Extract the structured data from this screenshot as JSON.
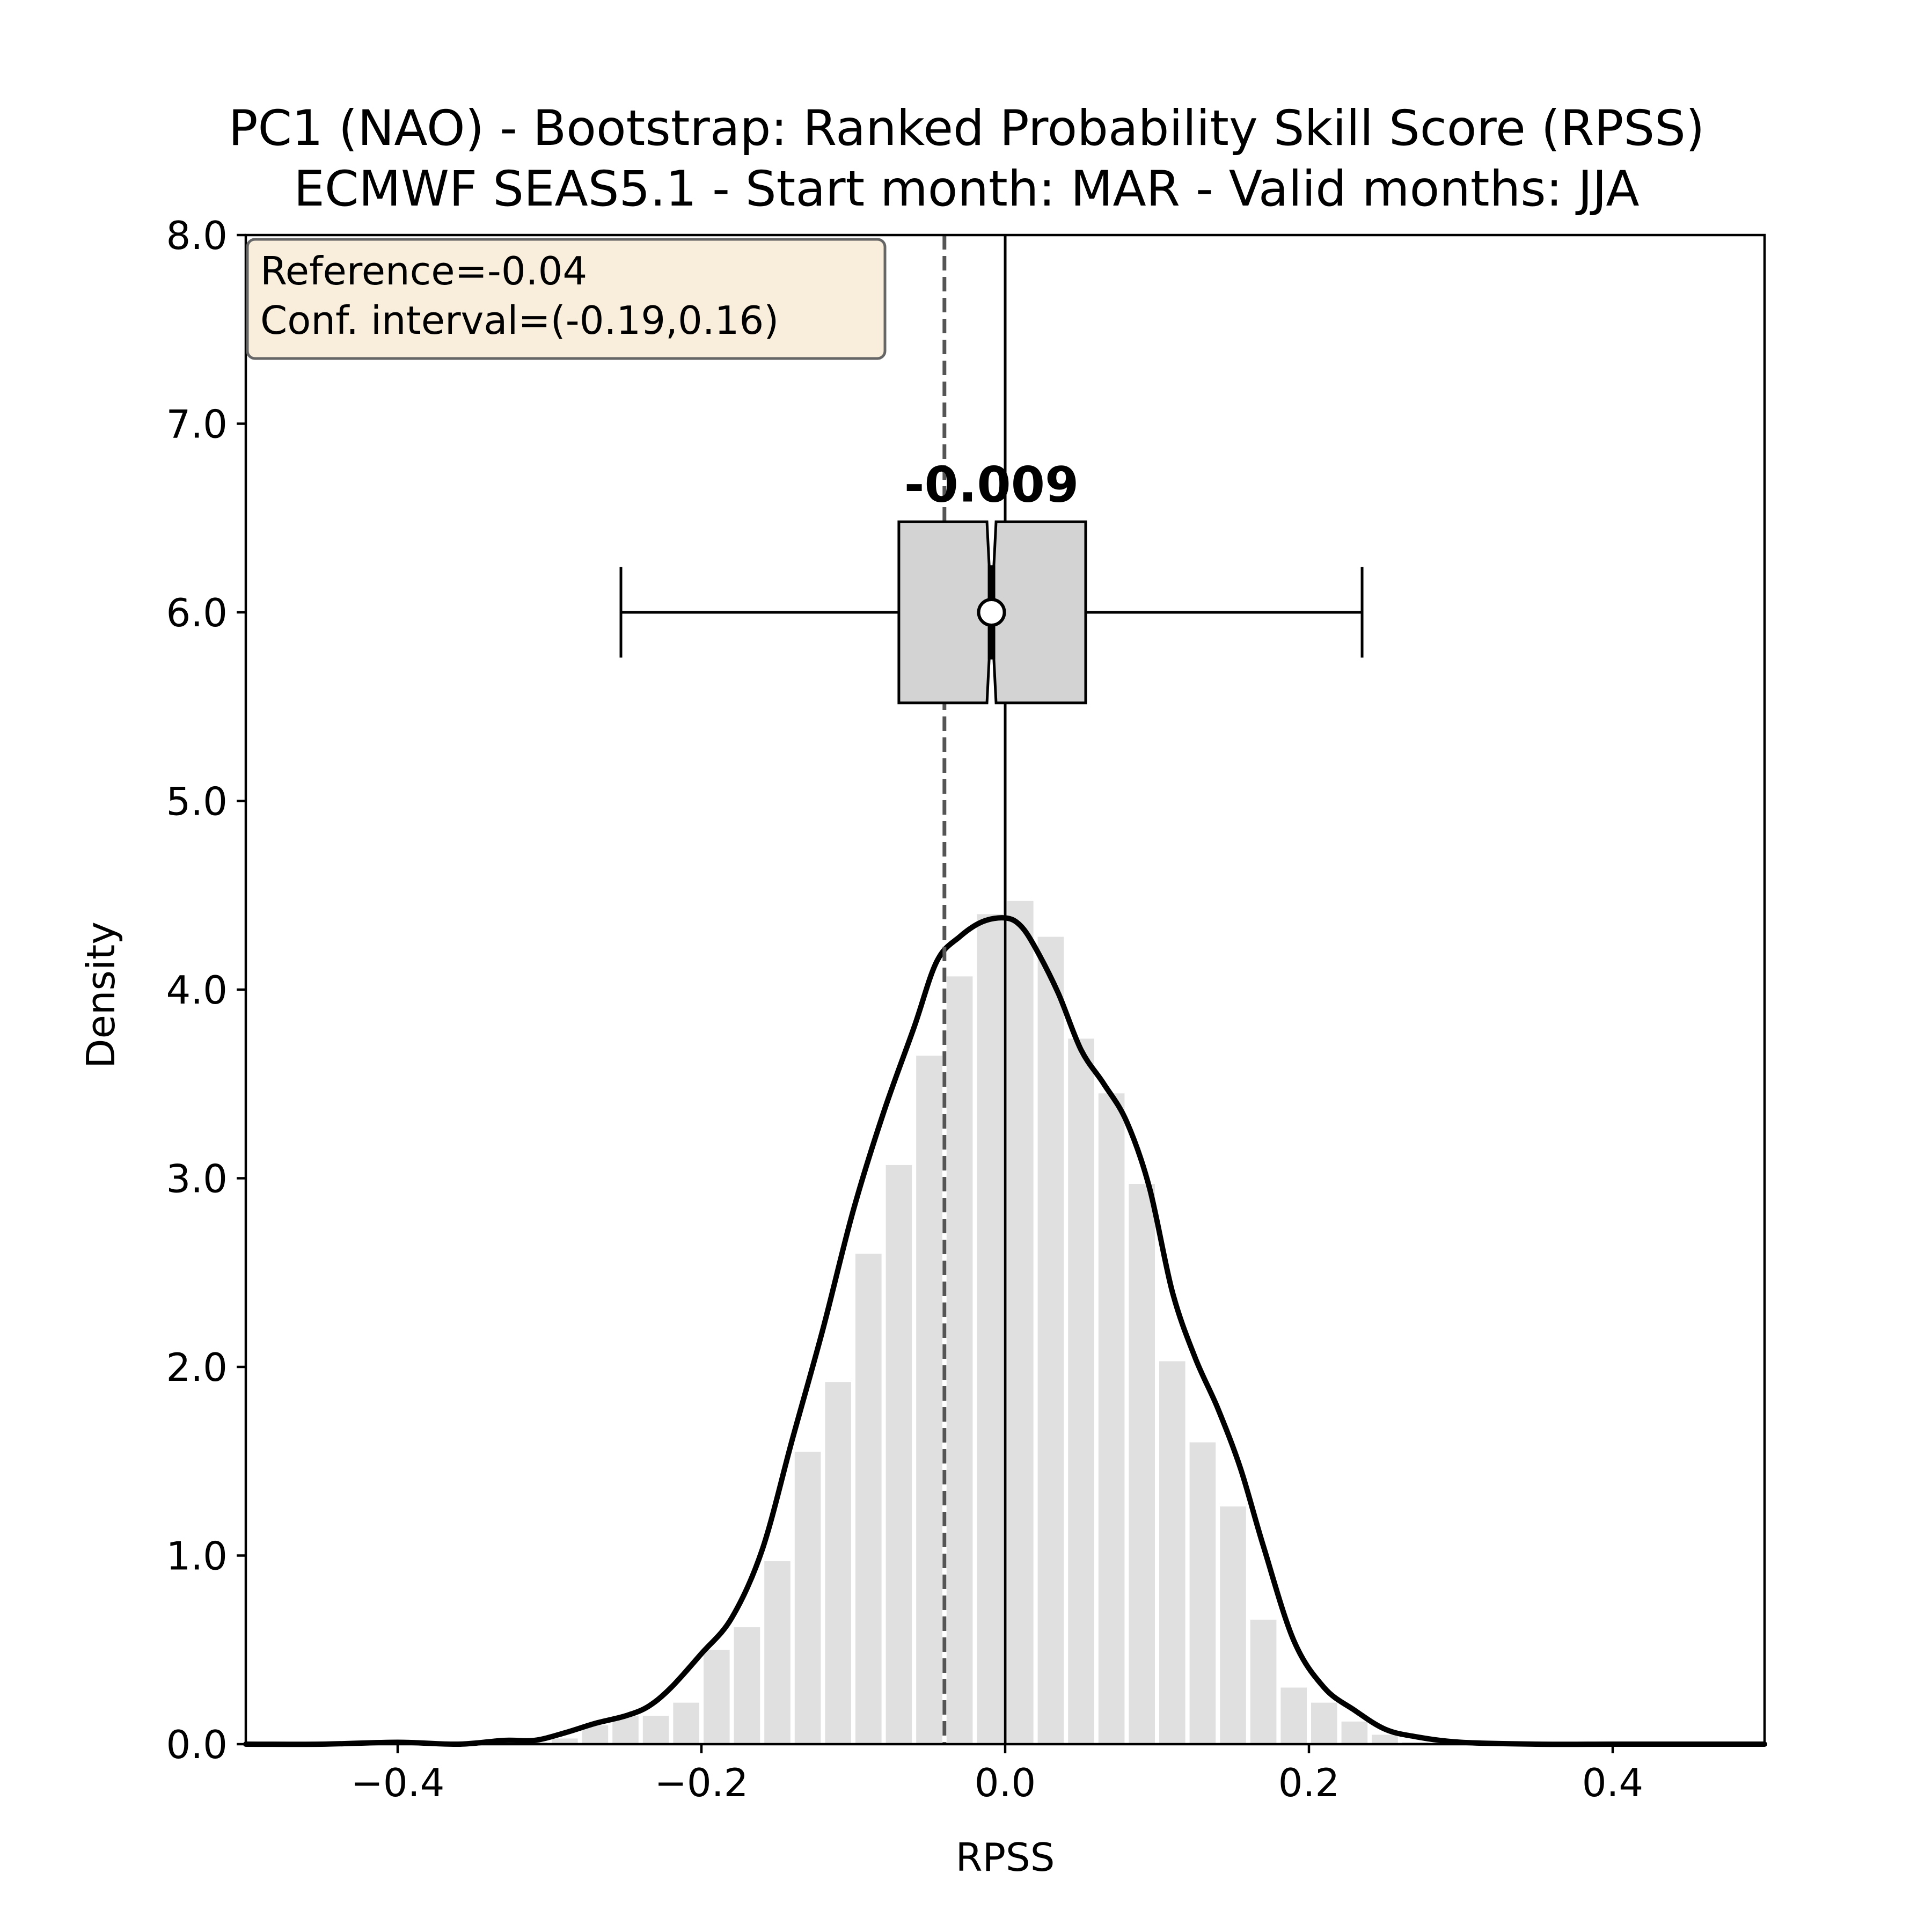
{
  "chart_data": {
    "type": "bar",
    "title": "PC1 (NAO) - Bootstrap: Ranked Probability Skill Score (RPSS)",
    "subtitle": "ECMWF SEAS5.1 - Start month: MAR - Valid months: JJA",
    "xlabel": "RPSS",
    "ylabel": "Density",
    "xlim": [
      -0.5,
      0.5
    ],
    "ylim": [
      0.0,
      8.0
    ],
    "xticks": [
      -0.4,
      -0.2,
      0.0,
      0.2,
      0.4
    ],
    "xtick_labels": [
      "−0.4",
      "−0.2",
      "0.0",
      "0.2",
      "0.4"
    ],
    "yticks": [
      0,
      1,
      2,
      3,
      4,
      5,
      6,
      7,
      8
    ],
    "ytick_labels": [
      "0.0",
      "1.0",
      "2.0",
      "3.0",
      "4.0",
      "5.0",
      "6.0",
      "7.0",
      "8.0"
    ],
    "grid": false,
    "info_box": {
      "line1": "Reference=-0.04",
      "line2": "Conf. interval=(-0.19,0.16)",
      "placement": "top-left"
    },
    "reference_line": -0.04,
    "zero_line": 0.0,
    "histogram": {
      "bin_edges": [
        -0.34,
        -0.32,
        -0.3,
        -0.28,
        -0.26,
        -0.24,
        -0.22,
        -0.2,
        -0.18,
        -0.16,
        -0.14,
        -0.12,
        -0.1,
        -0.08,
        -0.06,
        -0.04,
        -0.02,
        0.0,
        0.02,
        0.04,
        0.06,
        0.08,
        0.1,
        0.12,
        0.14,
        0.16,
        0.18,
        0.2,
        0.22,
        0.24,
        0.26,
        0.28
      ],
      "values": [
        0.02,
        0.01,
        0.03,
        0.1,
        0.15,
        0.15,
        0.22,
        0.5,
        0.62,
        0.97,
        1.55,
        1.92,
        2.6,
        3.07,
        3.65,
        4.07,
        4.4,
        4.47,
        4.28,
        3.74,
        3.45,
        2.97,
        2.03,
        1.6,
        1.26,
        0.66,
        0.3,
        0.22,
        0.12,
        0.05,
        0.01
      ]
    },
    "kde": {
      "x": [
        -0.5,
        -0.45,
        -0.4,
        -0.36,
        -0.33,
        -0.31,
        -0.29,
        -0.27,
        -0.25,
        -0.235,
        -0.22,
        -0.2,
        -0.18,
        -0.16,
        -0.14,
        -0.12,
        -0.1,
        -0.08,
        -0.06,
        -0.045,
        -0.03,
        -0.015,
        0.0,
        0.01,
        0.02,
        0.035,
        0.05,
        0.065,
        0.08,
        0.095,
        0.11,
        0.125,
        0.14,
        0.155,
        0.17,
        0.19,
        0.21,
        0.23,
        0.25,
        0.27,
        0.3,
        0.35,
        0.4,
        0.45,
        0.5
      ],
      "y": [
        0.0,
        0.0,
        0.01,
        0.0,
        0.02,
        0.02,
        0.06,
        0.11,
        0.15,
        0.2,
        0.3,
        0.48,
        0.67,
        1.03,
        1.62,
        2.2,
        2.83,
        3.35,
        3.8,
        4.15,
        4.28,
        4.36,
        4.38,
        4.34,
        4.22,
        3.98,
        3.68,
        3.5,
        3.3,
        2.95,
        2.4,
        2.05,
        1.78,
        1.46,
        1.05,
        0.55,
        0.3,
        0.18,
        0.08,
        0.04,
        0.01,
        0.0,
        0.0,
        0.0,
        0.0
      ]
    },
    "boxplot": {
      "y_position": 6.0,
      "whisker_low": -0.253,
      "q1": -0.07,
      "median": -0.009,
      "mean": -0.009,
      "q3": 0.053,
      "whisker_high": 0.235,
      "notch_low": -0.012,
      "notch_high": -0.006,
      "median_label": "-0.009",
      "box_color": "#d3d3d3"
    },
    "colors": {
      "histogram": "#e0e0e0",
      "kde": "#000000",
      "reference_line": "#555555",
      "info_box_fill": "#f9eedb",
      "info_box_edge": "#666666"
    }
  }
}
